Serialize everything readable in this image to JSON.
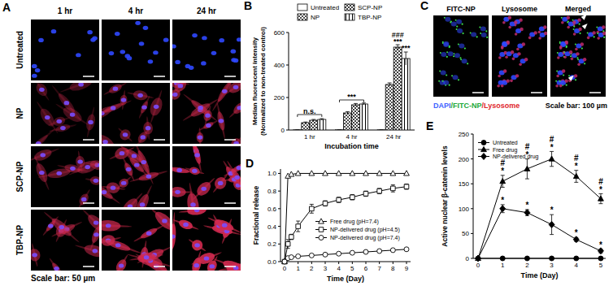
{
  "panel_a": {
    "label": "A",
    "columns": [
      "1 hr",
      "4 hr",
      "24 hr"
    ],
    "rows": [
      "Untreated",
      "NP",
      "SCP-NP",
      "TBP-NP"
    ],
    "scale_bar": "Scale bar: 50 µm"
  },
  "panel_c": {
    "label": "C",
    "columns": [
      "FITC-NP",
      "Lysosome",
      "Merged"
    ],
    "stain_legend": [
      {
        "text": "DAPI",
        "color": "#3f63ff"
      },
      {
        "text": "/FITC-NP",
        "color": "#22a83a"
      },
      {
        "text": "/Lysosome",
        "color": "#e0262c"
      }
    ],
    "scale_bar": "Scale bar: 100 µm"
  },
  "chart_data": [
    {
      "panel_label": "B",
      "type": "bar",
      "categories": [
        "1 hr",
        "4 hr",
        "24 hr"
      ],
      "xlabel": "Incubation time",
      "ylabel": [
        "Median fluorescent intensity",
        "(Normalized to non-treated control)"
      ],
      "ylim": [
        0,
        600
      ],
      "yticks": [
        0,
        200,
        400,
        600
      ],
      "legend": "top",
      "series": [
        {
          "name": "Untreated",
          "color": "#000000",
          "values": [
            1,
            1,
            1
          ],
          "errors": [
            0,
            0,
            0
          ]
        },
        {
          "name": "NP",
          "color": "#000000",
          "values": [
            45,
            105,
            280
          ],
          "errors": [
            4,
            8,
            10
          ]
        },
        {
          "name": "SCP-NP",
          "color": "#000000",
          "values": [
            60,
            155,
            510
          ],
          "errors": [
            5,
            8,
            15
          ]
        },
        {
          "name": "TBP-NP",
          "color": "#000000",
          "values": [
            65,
            160,
            440
          ],
          "errors": [
            5,
            6,
            40
          ]
        }
      ],
      "annotations": [
        {
          "text": "n.s.",
          "category": 0,
          "y": 100
        },
        {
          "text": "***",
          "category": 1,
          "y": 190
        },
        {
          "text": "***",
          "category": 2,
          "series": 2,
          "y": 532
        },
        {
          "text": "###",
          "category": 2,
          "series": 2,
          "y": 572
        },
        {
          "text": "***",
          "category": 2,
          "series": 3,
          "y": 490
        }
      ]
    },
    {
      "panel_label": "D",
      "type": "line",
      "x": [
        0,
        0.25,
        0.5,
        1,
        2,
        3,
        4,
        5,
        6,
        7,
        8,
        9
      ],
      "xlim": [
        -0.3,
        9.3
      ],
      "xticks": [
        0,
        1,
        2,
        3,
        4,
        5,
        6,
        7,
        8,
        9
      ],
      "ylim": [
        0,
        1.05
      ],
      "yticks": [
        {
          "value": 0,
          "label": "0.0"
        },
        0.2,
        0.4,
        0.6,
        0.8,
        {
          "value": 1,
          "label": "1.0"
        }
      ],
      "xlabel": "Time (Day)",
      "ylabel": "Fractional release",
      "legend": "right",
      "series": [
        {
          "name": "Free drug (pH=7.4)",
          "color": "#000000",
          "marker": "triangle-open",
          "values": [
            0,
            0.97,
            0.99,
            1,
            1,
            1,
            1,
            1,
            1,
            1,
            1,
            1
          ]
        },
        {
          "name": "NP-delivered drug (pH=4.5)",
          "color": "#000000",
          "marker": "square-open",
          "values": [
            0,
            0.2,
            0.28,
            0.4,
            0.6,
            0.66,
            0.7,
            0.73,
            0.77,
            0.8,
            0.83,
            0.85
          ],
          "errors": [
            0,
            0.05,
            0.03,
            0.06,
            0.05,
            0.03,
            0.03,
            0.03,
            0.03,
            0.03,
            0.04,
            0.03
          ]
        },
        {
          "name": "NP-delivered drug (pH=7.4)",
          "color": "#000000",
          "marker": "circle-open",
          "values": [
            0,
            0.04,
            0.05,
            0.06,
            0.07,
            0.08,
            0.09,
            0.1,
            0.11,
            0.12,
            0.13,
            0.14
          ]
        }
      ]
    },
    {
      "panel_label": "E",
      "type": "line",
      "x": [
        0,
        1,
        2,
        3,
        4,
        5
      ],
      "xlim": [
        -0.2,
        5.2
      ],
      "xticks": [
        0,
        1,
        2,
        3,
        4,
        5
      ],
      "ylim": [
        0,
        250
      ],
      "yticks": [
        0,
        50,
        100,
        150,
        200,
        250
      ],
      "xlabel": "Time (Day)",
      "ylabel": "Active nuclear β-catenin levels",
      "legend": "upper left",
      "series": [
        {
          "name": "Untreated",
          "color": "#000000",
          "marker": "circle",
          "values": [
            0,
            0,
            0,
            0,
            0,
            0
          ]
        },
        {
          "name": "Free drug",
          "color": "#000000",
          "marker": "triangle",
          "values": [
            0,
            155,
            180,
            200,
            165,
            120
          ],
          "errors": [
            0,
            12,
            20,
            15,
            12,
            10
          ]
        },
        {
          "name": "NP-delivered drug",
          "color": "#000000",
          "marker": "diamond",
          "values": [
            0,
            100,
            92,
            68,
            38,
            15
          ],
          "errors": [
            0,
            8,
            6,
            20,
            4,
            4
          ]
        }
      ],
      "annotations": [
        {
          "text": "*",
          "x": 1,
          "y": 170
        },
        {
          "text": "#",
          "x": 1,
          "y": 186
        },
        {
          "text": "*",
          "x": 2,
          "y": 203
        },
        {
          "text": "#",
          "x": 2,
          "y": 219
        },
        {
          "text": "*",
          "x": 3,
          "y": 218
        },
        {
          "text": "#",
          "x": 3,
          "y": 234
        },
        {
          "text": "*",
          "x": 4,
          "y": 180
        },
        {
          "text": "#",
          "x": 4,
          "y": 196
        },
        {
          "text": "*",
          "x": 5,
          "y": 133
        },
        {
          "text": "#",
          "x": 5,
          "y": 149
        },
        {
          "text": "*",
          "x": 1,
          "y": 111
        },
        {
          "text": "*",
          "x": 2,
          "y": 101
        },
        {
          "text": "*",
          "x": 3,
          "y": 91
        },
        {
          "text": "*",
          "x": 4,
          "y": 45
        },
        {
          "text": "*",
          "x": 5,
          "y": 22
        }
      ]
    }
  ]
}
